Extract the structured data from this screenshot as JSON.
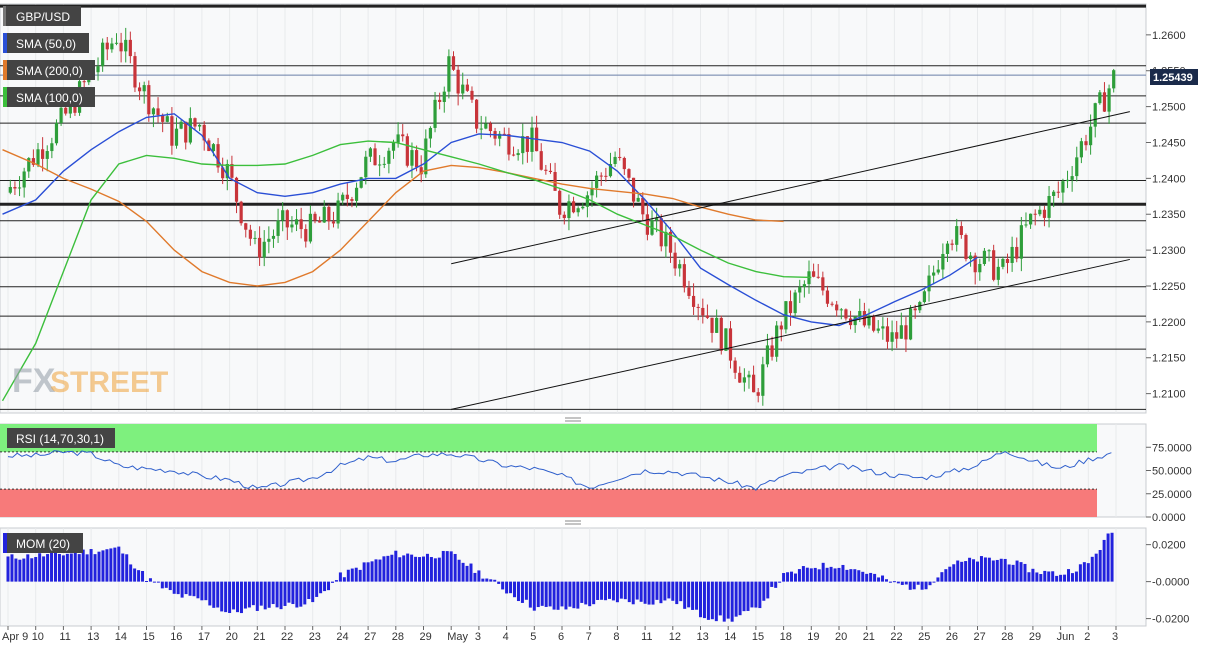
{
  "colors": {
    "bull": "#2e9e3a",
    "bear": "#c8343a",
    "sma50": "#2a4fd6",
    "sma200": "#e07a2c",
    "sma100": "#3cbf3c",
    "rsi_line": "#3060cc",
    "rsi_overbought": "#7ef07e",
    "rsi_oversold": "#f77a7a",
    "mom_bar": "#2222dd",
    "price_tag": "#1a2a4a",
    "watermark_fx": "#9aa3ad",
    "watermark_street": "#f0a33a",
    "trendline": "#111111",
    "level_line": "#222222"
  },
  "legend": {
    "symbol": "GBP/USD",
    "sma50": "SMA (50,0)",
    "sma200": "SMA (200,0)",
    "sma100": "SMA (100,0)"
  },
  "watermark": {
    "fx": "FX",
    "street": "STREET"
  },
  "price_tag": "1.25439",
  "rsi_label": "RSI (14,70,30,1)",
  "mom_label": "MOM (20)",
  "chart_data": {
    "type": "candlestick",
    "instrument": "GBP/USD",
    "x_labels": [
      "Apr 9",
      "10",
      "11",
      "13",
      "14",
      "15",
      "16",
      "17",
      "20",
      "21",
      "22",
      "23",
      "24",
      "27",
      "28",
      "29",
      "May",
      "3",
      "4",
      "5",
      "6",
      "7",
      "8",
      "11",
      "12",
      "13",
      "14",
      "15",
      "18",
      "19",
      "20",
      "21",
      "22",
      "25",
      "26",
      "27",
      "28",
      "29",
      "Jun",
      "2",
      "3"
    ],
    "price_axis": {
      "ylim": [
        1.2073,
        1.2643
      ],
      "ticks": [
        "1.2100",
        "1.2150",
        "1.2200",
        "1.2250",
        "1.2300",
        "1.2350",
        "1.2400",
        "1.2450",
        "1.2500",
        "1.2550",
        "1.2600"
      ],
      "last_price": 1.25439
    },
    "daily_path": [
      1.238,
      1.243,
      1.2478,
      1.254,
      1.26,
      1.252,
      1.246,
      1.2475,
      1.241,
      1.23,
      1.2335,
      1.233,
      1.2352,
      1.242,
      1.245,
      1.242,
      1.256,
      1.248,
      1.2455,
      1.245,
      1.236,
      1.238,
      1.243,
      1.235,
      1.23,
      1.223,
      1.217,
      1.2095,
      1.22,
      1.226,
      1.223,
      1.2195,
      1.2175,
      1.221,
      1.233,
      1.229,
      1.227,
      1.234,
      1.238,
      1.246,
      1.254
    ],
    "horizontal_levels": [
      1.264,
      1.2557,
      1.2515,
      1.2477,
      1.2397,
      1.2364,
      1.2341,
      1.229,
      1.2249,
      1.2208,
      1.2162,
      1.2078
    ],
    "heavy_levels": [
      1.264,
      1.2364
    ],
    "trendlines": [
      {
        "from": {
          "x": 16.0,
          "y": 1.2078
        },
        "to": {
          "x": 40.5,
          "y": 1.2287
        }
      },
      {
        "from": {
          "x": 16.0,
          "y": 1.2281
        },
        "to": {
          "x": 40.5,
          "y": 1.2493
        }
      }
    ],
    "series": [
      {
        "name": "SMA (50,0)",
        "points": [
          [
            -0.2,
            1.235
          ],
          [
            1,
            1.237
          ],
          [
            2,
            1.241
          ],
          [
            3,
            1.244
          ],
          [
            4,
            1.2465
          ],
          [
            5,
            1.2485
          ],
          [
            6,
            1.249
          ],
          [
            7,
            1.246
          ],
          [
            8,
            1.24
          ],
          [
            9,
            1.238
          ],
          [
            10,
            1.2375
          ],
          [
            11,
            1.238
          ],
          [
            12,
            1.2392
          ],
          [
            13,
            1.24
          ],
          [
            14,
            1.24
          ],
          [
            15,
            1.242
          ],
          [
            16,
            1.245
          ],
          [
            17,
            1.2462
          ],
          [
            18,
            1.246
          ],
          [
            19,
            1.2455
          ],
          [
            20,
            1.245
          ],
          [
            21,
            1.2438
          ],
          [
            22,
            1.241
          ],
          [
            23,
            1.237
          ],
          [
            24,
            1.2325
          ],
          [
            25,
            1.2275
          ],
          [
            26,
            1.2252
          ],
          [
            27,
            1.223
          ],
          [
            28,
            1.221
          ],
          [
            29,
            1.22
          ],
          [
            30,
            1.2195
          ],
          [
            31,
            1.221
          ],
          [
            32,
            1.2228
          ],
          [
            33,
            1.2245
          ],
          [
            34,
            1.2265
          ],
          [
            35,
            1.229
          ]
        ]
      },
      {
        "name": "SMA (200,0)",
        "points": [
          [
            -0.2,
            1.244
          ],
          [
            1,
            1.242
          ],
          [
            2,
            1.24
          ],
          [
            3,
            1.2385
          ],
          [
            4,
            1.2368
          ],
          [
            5,
            1.234
          ],
          [
            6,
            1.23
          ],
          [
            7,
            1.227
          ],
          [
            8,
            1.2255
          ],
          [
            9,
            1.225
          ],
          [
            10,
            1.2255
          ],
          [
            11,
            1.227
          ],
          [
            12,
            1.23
          ],
          [
            13,
            1.234
          ],
          [
            14,
            1.238
          ],
          [
            15,
            1.241
          ],
          [
            16,
            1.2418
          ],
          [
            17,
            1.2415
          ],
          [
            18,
            1.2408
          ],
          [
            19,
            1.24
          ],
          [
            20,
            1.2392
          ],
          [
            21,
            1.2386
          ],
          [
            22,
            1.2382
          ],
          [
            23,
            1.2378
          ],
          [
            24,
            1.2372
          ],
          [
            25,
            1.236
          ],
          [
            26,
            1.235
          ],
          [
            27,
            1.2342
          ],
          [
            28,
            1.234
          ]
        ]
      },
      {
        "name": "SMA (100,0)",
        "points": [
          [
            -0.2,
            1.209
          ],
          [
            1,
            1.217
          ],
          [
            2,
            1.227
          ],
          [
            3,
            1.237
          ],
          [
            4,
            1.242
          ],
          [
            5,
            1.2432
          ],
          [
            6,
            1.2428
          ],
          [
            7,
            1.242
          ],
          [
            8,
            1.2418
          ],
          [
            9,
            1.2418
          ],
          [
            10,
            1.242
          ],
          [
            11,
            1.2432
          ],
          [
            12,
            1.2447
          ],
          [
            13,
            1.2452
          ],
          [
            14,
            1.245
          ],
          [
            15,
            1.244
          ],
          [
            16,
            1.243
          ],
          [
            17,
            1.242
          ],
          [
            18,
            1.2408
          ],
          [
            19,
            1.2398
          ],
          [
            20,
            1.2385
          ],
          [
            21,
            1.237
          ],
          [
            22,
            1.235
          ],
          [
            23,
            1.2335
          ],
          [
            24,
            1.232
          ],
          [
            25,
            1.23
          ],
          [
            26,
            1.2282
          ],
          [
            27,
            1.227
          ],
          [
            28,
            1.2263
          ],
          [
            29,
            1.2262
          ]
        ]
      }
    ],
    "rsi": {
      "ylim": [
        0,
        100
      ],
      "ticks": [
        "0.0000",
        "25.0000",
        "50.0000",
        "75.0000"
      ],
      "overbought": 70,
      "oversold": 30,
      "path": [
        [
          0,
          66
        ],
        [
          1,
          66
        ],
        [
          2,
          70
        ],
        [
          3,
          68
        ],
        [
          4,
          55
        ],
        [
          5,
          52
        ],
        [
          6,
          50
        ],
        [
          7,
          44
        ],
        [
          8,
          40
        ],
        [
          9,
          30
        ],
        [
          10,
          36
        ],
        [
          11,
          42
        ],
        [
          12,
          55
        ],
        [
          13,
          64
        ],
        [
          14,
          60
        ],
        [
          15,
          67
        ],
        [
          16,
          68
        ],
        [
          17,
          62
        ],
        [
          18,
          55
        ],
        [
          19,
          52
        ],
        [
          20,
          44
        ],
        [
          21,
          32
        ],
        [
          22,
          42
        ],
        [
          23,
          50
        ],
        [
          24,
          49
        ],
        [
          25,
          44
        ],
        [
          26,
          38
        ],
        [
          27,
          31
        ],
        [
          28,
          44
        ],
        [
          29,
          50
        ],
        [
          30,
          55
        ],
        [
          31,
          50
        ],
        [
          32,
          45
        ],
        [
          33,
          42
        ],
        [
          34,
          48
        ],
        [
          35,
          56
        ],
        [
          36,
          72
        ],
        [
          37,
          60
        ],
        [
          38,
          52
        ],
        [
          39,
          62
        ],
        [
          40,
          70
        ]
      ]
    },
    "momentum": {
      "ticks": [
        "0.0200",
        "-0.0000",
        "-0.0200"
      ],
      "ylim": [
        -0.024,
        0.029
      ],
      "path": [
        [
          0,
          0.013
        ],
        [
          2,
          0.015
        ],
        [
          4,
          0.018
        ],
        [
          5,
          0.002
        ],
        [
          6,
          -0.007
        ],
        [
          7,
          -0.01
        ],
        [
          8,
          -0.017
        ],
        [
          9,
          -0.014
        ],
        [
          10,
          -0.013
        ],
        [
          11,
          -0.011
        ],
        [
          12,
          0.003
        ],
        [
          13,
          0.01
        ],
        [
          14,
          0.015
        ],
        [
          15,
          0.014
        ],
        [
          16,
          0.015
        ],
        [
          17,
          0.005
        ],
        [
          18,
          -0.005
        ],
        [
          19,
          -0.014
        ],
        [
          20,
          -0.015
        ],
        [
          21,
          -0.012
        ],
        [
          22,
          -0.01
        ],
        [
          23,
          -0.011
        ],
        [
          24,
          -0.01
        ],
        [
          25,
          -0.018
        ],
        [
          26,
          -0.021
        ],
        [
          27,
          -0.015
        ],
        [
          28,
          0.003
        ],
        [
          29,
          0.008
        ],
        [
          30,
          0.009
        ],
        [
          31,
          0.005
        ],
        [
          32,
          -0.001
        ],
        [
          33,
          -0.004
        ],
        [
          34,
          0.009
        ],
        [
          35,
          0.012
        ],
        [
          36,
          0.012
        ],
        [
          37,
          0.006
        ],
        [
          38,
          0.004
        ],
        [
          39,
          0.01
        ],
        [
          40,
          0.03
        ]
      ]
    }
  }
}
